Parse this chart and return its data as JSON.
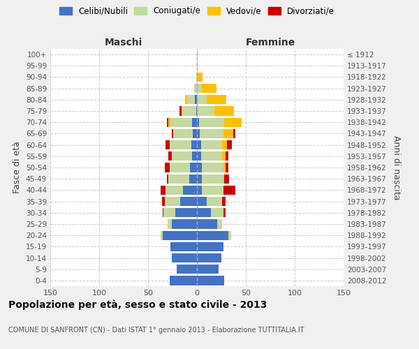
{
  "age_groups": [
    "0-4",
    "5-9",
    "10-14",
    "15-19",
    "20-24",
    "25-29",
    "30-34",
    "35-39",
    "40-44",
    "45-49",
    "50-54",
    "55-59",
    "60-64",
    "65-69",
    "70-74",
    "75-79",
    "80-84",
    "85-89",
    "90-94",
    "95-99",
    "100+"
  ],
  "birth_years": [
    "2008-2012",
    "2003-2007",
    "1998-2002",
    "1993-1997",
    "1988-1992",
    "1983-1987",
    "1978-1982",
    "1973-1977",
    "1968-1972",
    "1963-1967",
    "1958-1962",
    "1953-1957",
    "1948-1952",
    "1943-1947",
    "1938-1942",
    "1933-1937",
    "1928-1932",
    "1923-1927",
    "1918-1922",
    "1913-1917",
    "≤ 1912"
  ],
  "maschi": {
    "celibi": [
      28,
      21,
      26,
      27,
      35,
      26,
      22,
      17,
      14,
      8,
      7,
      5,
      6,
      4,
      5,
      1,
      2,
      0,
      0,
      0,
      0
    ],
    "coniugati": [
      0,
      0,
      0,
      0,
      2,
      4,
      12,
      16,
      18,
      21,
      21,
      21,
      22,
      20,
      22,
      14,
      8,
      3,
      1,
      0,
      0
    ],
    "vedovi": [
      0,
      0,
      0,
      0,
      0,
      0,
      0,
      0,
      0,
      0,
      0,
      0,
      0,
      0,
      2,
      1,
      2,
      0,
      0,
      0,
      0
    ],
    "divorziati": [
      0,
      0,
      0,
      0,
      0,
      0,
      1,
      3,
      5,
      2,
      5,
      3,
      4,
      2,
      2,
      2,
      0,
      0,
      0,
      0,
      0
    ]
  },
  "femmine": {
    "nubili": [
      28,
      22,
      25,
      27,
      32,
      21,
      14,
      10,
      5,
      5,
      5,
      4,
      4,
      3,
      2,
      0,
      0,
      0,
      0,
      0,
      0
    ],
    "coniugate": [
      0,
      0,
      0,
      0,
      3,
      5,
      13,
      16,
      22,
      22,
      22,
      22,
      22,
      24,
      26,
      18,
      10,
      5,
      1,
      0,
      0
    ],
    "vedove": [
      0,
      0,
      0,
      0,
      0,
      0,
      0,
      0,
      0,
      1,
      2,
      3,
      5,
      10,
      18,
      20,
      20,
      15,
      5,
      1,
      0
    ],
    "divorziate": [
      0,
      0,
      0,
      0,
      0,
      0,
      2,
      3,
      12,
      5,
      3,
      3,
      5,
      2,
      0,
      0,
      0,
      0,
      0,
      0,
      0
    ]
  },
  "colors": {
    "celibi": "#4472c4",
    "coniugati": "#c5d9a0",
    "vedovi": "#ffc000",
    "divorziati": "#cc0000"
  },
  "title": "Popolazione per età, sesso e stato civile - 2013",
  "subtitle": "COMUNE DI SANFRONT (CN) - Dati ISTAT 1° gennaio 2013 - Elaborazione TUTTITALIA.IT",
  "ylabel_left": "Fasce di età",
  "ylabel_right": "Anni di nascita",
  "xlabel_left": "Maschi",
  "xlabel_right": "Femmine",
  "xlim": 150,
  "bg_color": "#f0f0f0",
  "plot_bg": "#ffffff",
  "grid_color": "#cccccc"
}
